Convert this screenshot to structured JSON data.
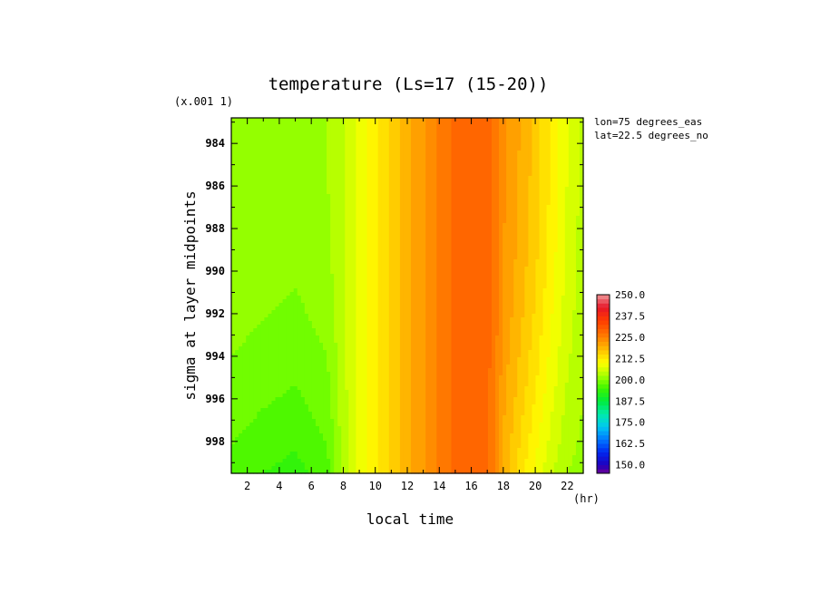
{
  "chart_data": {
    "type": "heatmap",
    "title": "temperature (Ls=17 (15-20))",
    "xlabel": "local time",
    "ylabel": "sigma at layer midpoints",
    "x_unit": "(hr)",
    "y_scale_note": "(x.001 1)",
    "annotations": [
      "lon=75 degrees_eas",
      "lat=22.5 degrees_no"
    ],
    "xlim": [
      1,
      23
    ],
    "ylim": [
      999.5,
      982.8
    ],
    "x_ticks": [
      2,
      4,
      6,
      8,
      10,
      12,
      14,
      16,
      18,
      20,
      22
    ],
    "y_ticks": [
      984,
      986,
      988,
      990,
      992,
      994,
      996,
      998
    ],
    "x_tick_labels": [
      "2",
      "4",
      "6",
      "8",
      "10",
      "12",
      "14",
      "16",
      "18",
      "20",
      "22"
    ],
    "y_tick_labels": [
      "984",
      "986",
      "988",
      "990",
      "992",
      "994",
      "996",
      "998"
    ],
    "x": [
      1,
      3,
      5,
      7,
      8,
      9,
      10,
      11,
      12,
      13,
      14,
      15,
      16,
      17,
      17.5,
      18,
      19,
      20,
      21,
      22,
      23
    ],
    "y": [
      982.8,
      985,
      987,
      989,
      991,
      993,
      995,
      997,
      998.5,
      999.5
    ],
    "values_top": [
      202.5,
      202.0,
      201.5,
      202.5,
      205.0,
      208.0,
      211.5,
      215.5,
      219.0,
      222.0,
      225.5,
      228.0,
      229.0,
      228.5,
      226.5,
      223.0,
      220.0,
      216.5,
      212.0,
      207.5,
      204.0
    ],
    "values_bottom": [
      196.5,
      195.0,
      194.0,
      196.5,
      203.5,
      208.0,
      211.5,
      215.5,
      219.0,
      222.0,
      225.5,
      228.0,
      228.8,
      228.0,
      225.0,
      219.0,
      214.0,
      209.5,
      205.5,
      202.5,
      201.5
    ],
    "colorbar": {
      "min": 145,
      "max": 250,
      "step": 2.5,
      "labels": [
        "250.0",
        "237.5",
        "225.0",
        "212.5",
        "200.0",
        "187.5",
        "175.0",
        "162.5",
        "150.0"
      ]
    }
  }
}
